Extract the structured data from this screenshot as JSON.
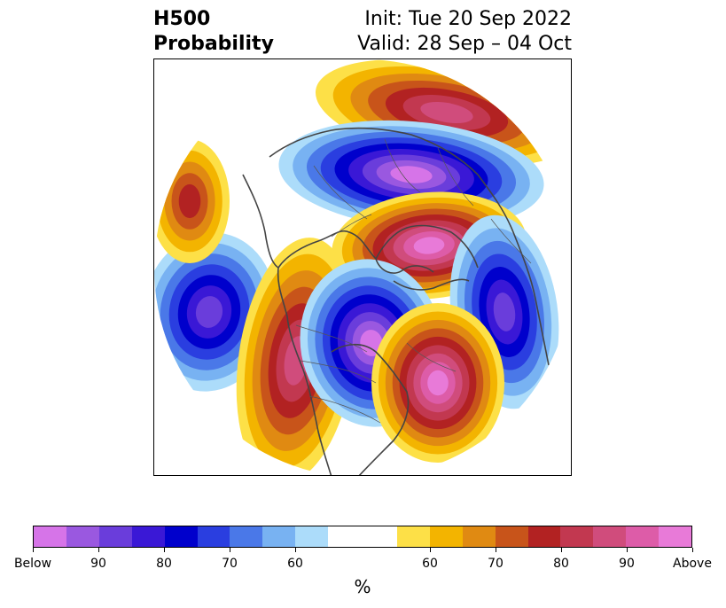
{
  "title": {
    "left_line1": "H500",
    "left_line2": "Probability",
    "right_line1": "Init: Tue 20 Sep 2022",
    "right_line2": "Valid: 28 Sep – 04 Oct"
  },
  "colorbar": {
    "unit": "%",
    "below_colors": [
      "#d674e8",
      "#9a58e0",
      "#6a3ddb",
      "#3a18d6",
      "#0000cc",
      "#2a3ee0",
      "#4a78e8",
      "#78b2f2",
      "#acdcfa"
    ],
    "neutral_color": "#ffffff",
    "above_colors": [
      "#fde047",
      "#f3b400",
      "#e08a12",
      "#c8541a",
      "#b22222",
      "#c23850",
      "#d04c7c",
      "#dd5ca8",
      "#e87ad8"
    ],
    "tick_labels": [
      "Below",
      "90",
      "80",
      "70",
      "60",
      "60",
      "70",
      "80",
      "90",
      "Above"
    ]
  },
  "map": {
    "projection": "polar-stereographic-north",
    "anomalies": [
      {
        "region": "north-atlantic-scandinavia",
        "sign": "above",
        "max_level": 80
      },
      {
        "region": "greenland-arctic",
        "sign": "below",
        "max_level": 90
      },
      {
        "region": "east-siberia",
        "sign": "above",
        "max_level": 90
      },
      {
        "region": "north-pacific",
        "sign": "below",
        "max_level": 80
      },
      {
        "region": "west-north-america",
        "sign": "above",
        "max_level": 80
      },
      {
        "region": "central-canada",
        "sign": "below",
        "max_level": 90
      },
      {
        "region": "northwest-pacific-asia",
        "sign": "below",
        "max_level": 80
      },
      {
        "region": "japan-west-pacific",
        "sign": "above",
        "max_level": 90
      },
      {
        "region": "central-asia",
        "sign": "above",
        "max_level": 70
      }
    ]
  }
}
